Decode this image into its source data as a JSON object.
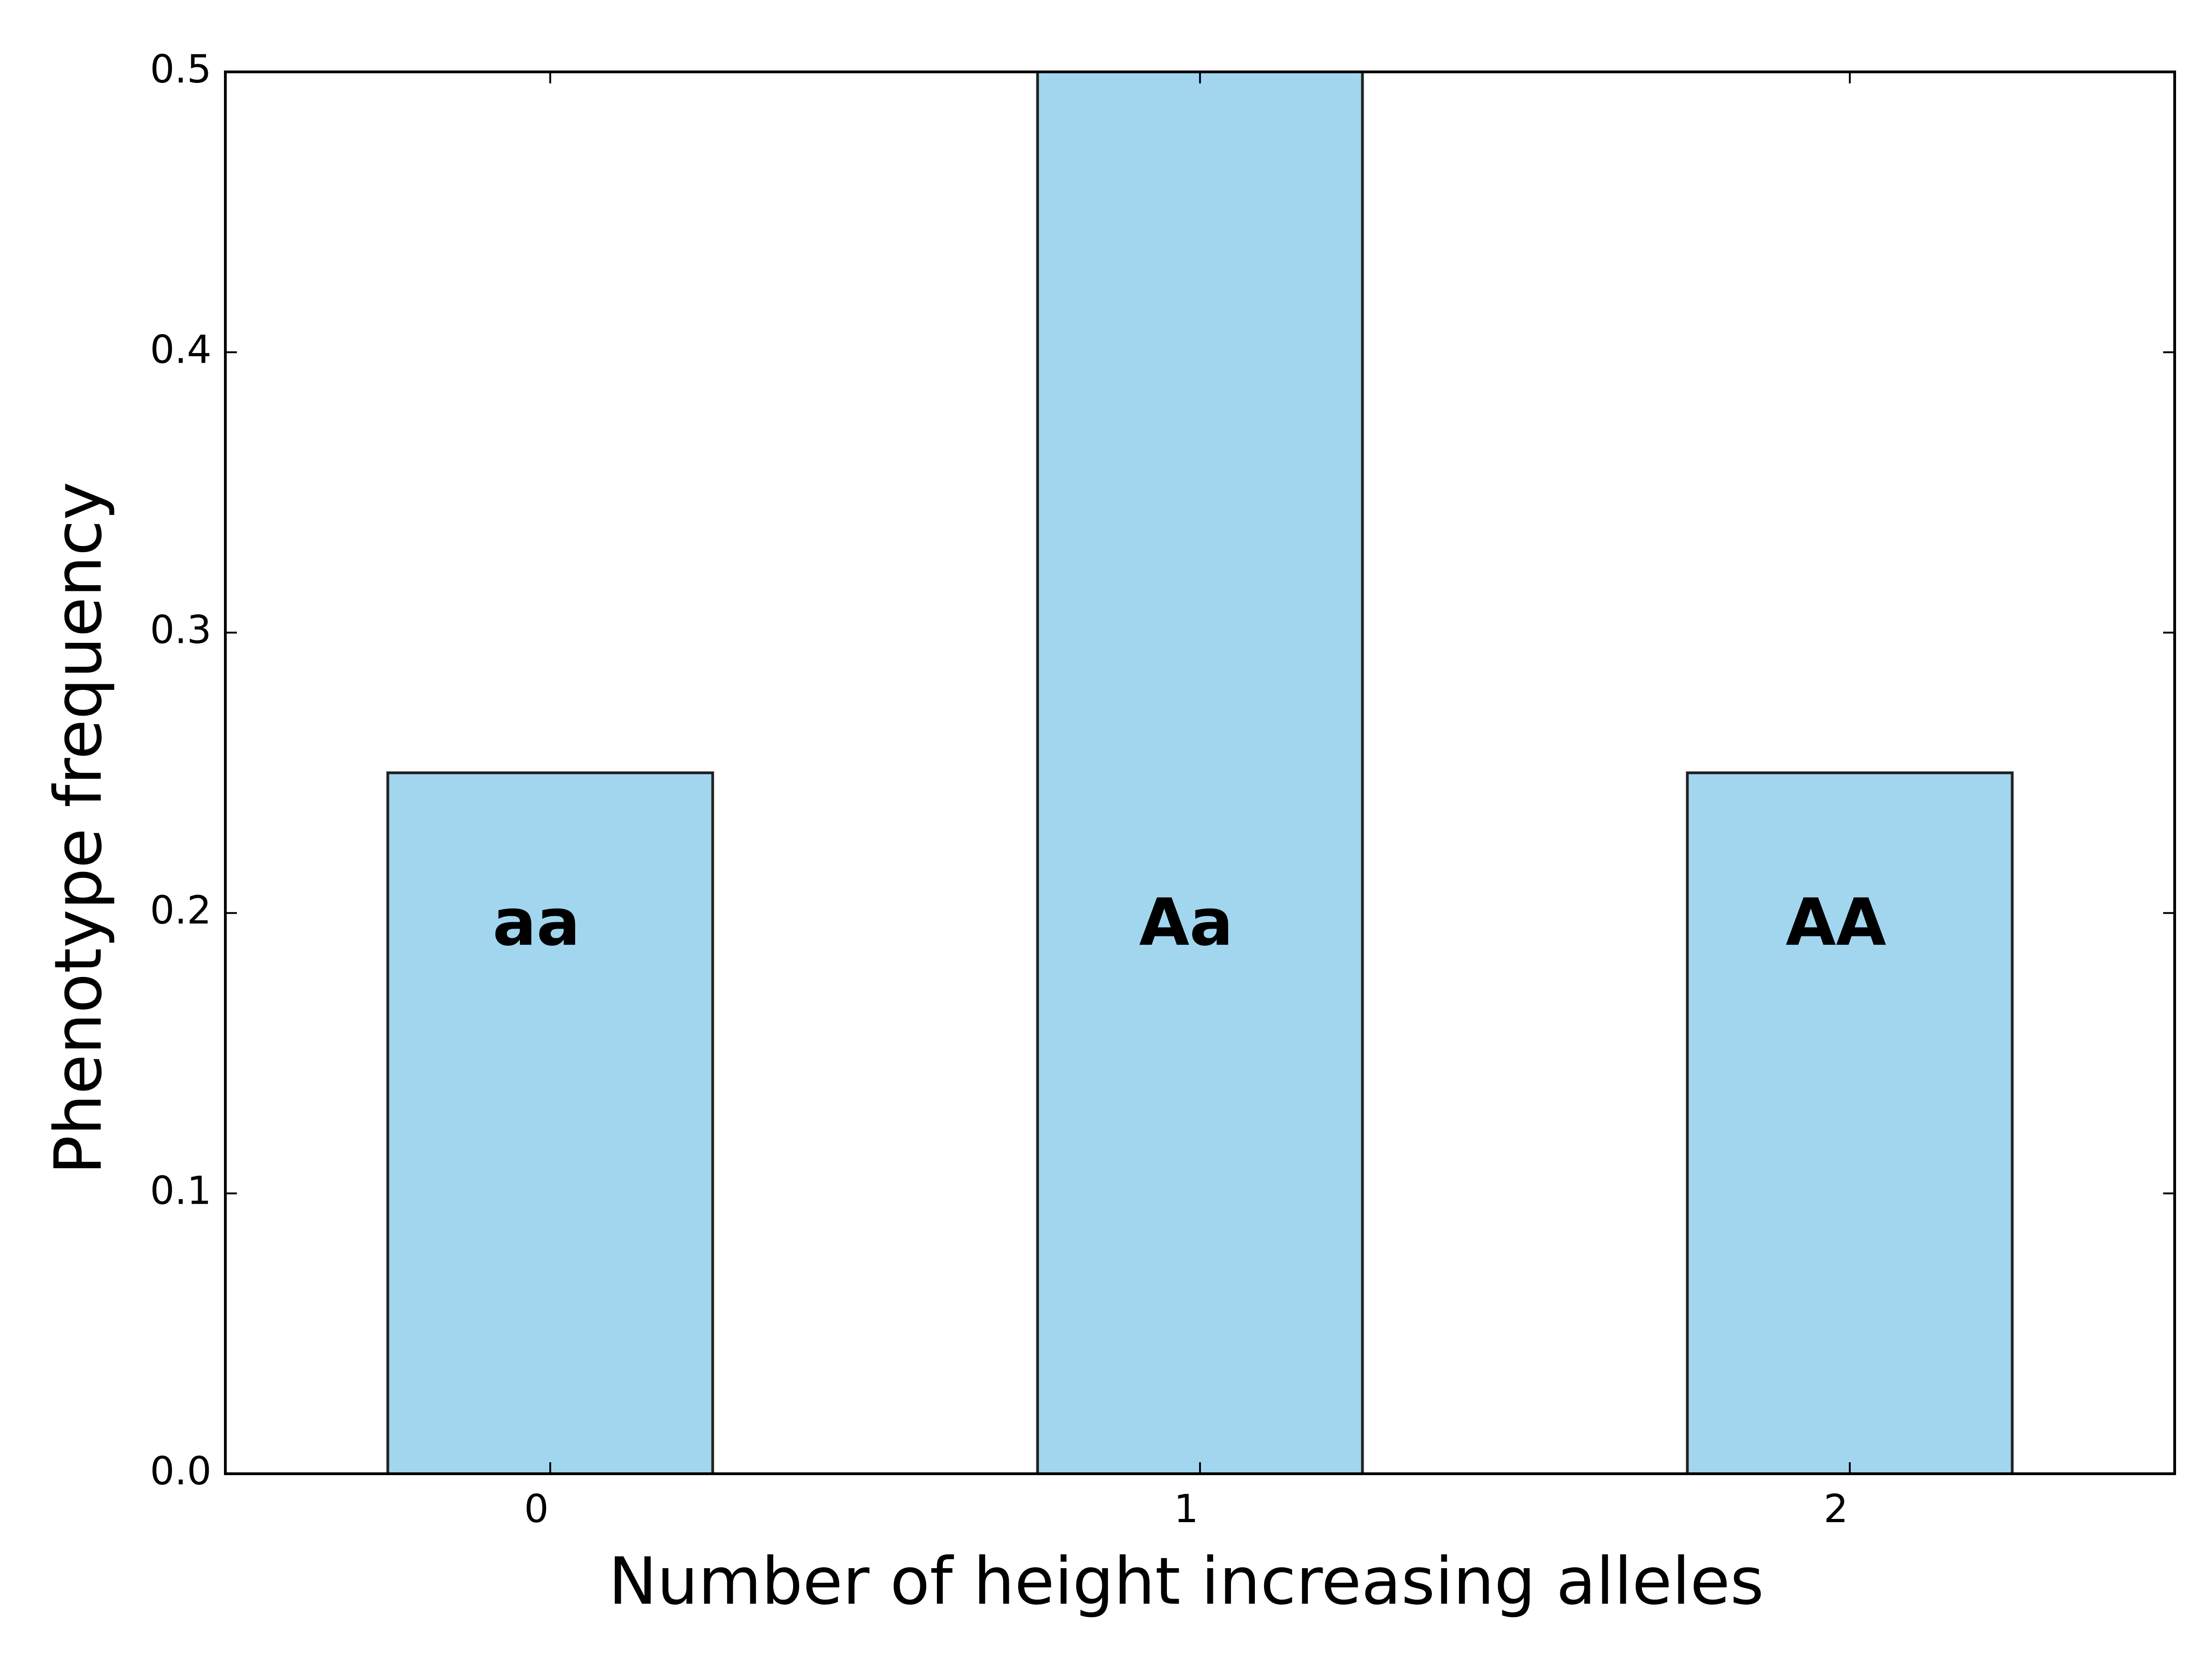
{
  "chart_data": {
    "type": "bar",
    "categories": [
      "0",
      "1",
      "2"
    ],
    "x": [
      0,
      1,
      2
    ],
    "values": [
      0.25,
      0.5,
      0.25
    ],
    "bar_labels": [
      "aa",
      "Aa",
      "AA"
    ],
    "title": "",
    "xlabel": "Number of height increasing alleles",
    "ylabel": "Phenotype frequency",
    "xlim": [
      -0.5,
      2.5
    ],
    "ylim": [
      0,
      0.5
    ],
    "xticks": [
      "0",
      "1",
      "2"
    ],
    "yticks": [
      "0.0",
      "0.1",
      "0.2",
      "0.3",
      "0.4",
      "0.5"
    ],
    "bar_label_value": 0.195,
    "grid": false,
    "legend": "none",
    "colors": {
      "bar_fill": "#a1d6ee",
      "bar_edge": "#222222",
      "axes": "#000000",
      "text": "#000000"
    }
  }
}
